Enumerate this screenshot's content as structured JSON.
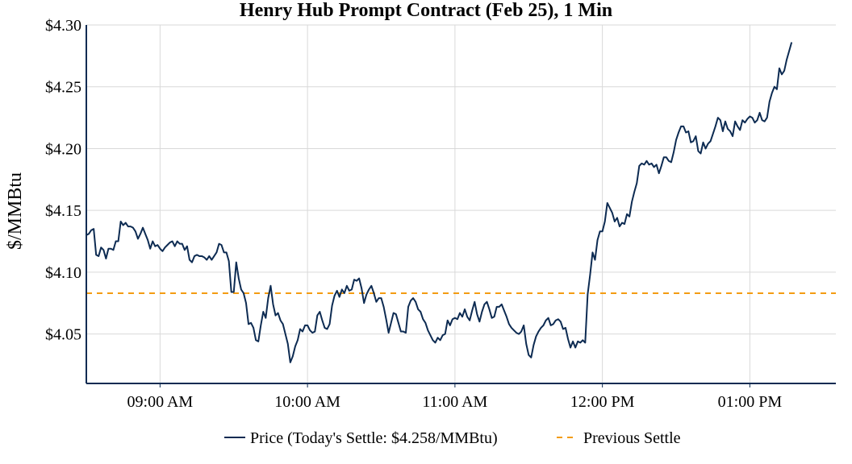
{
  "chart_data": {
    "type": "line",
    "title": "Henry Hub Prompt Contract (Feb 25), 1 Min",
    "xlabel": "",
    "ylabel": "$/MMBtu",
    "ylim": [
      4.01,
      4.3
    ],
    "xlim": [
      "08:30",
      "13:35"
    ],
    "x_ticks": [
      "09:00 AM",
      "10:00 AM",
      "11:00 AM",
      "12:00 PM",
      "01:00 PM"
    ],
    "x_tick_times": [
      "09:00",
      "10:00",
      "11:00",
      "12:00",
      "13:00"
    ],
    "y_ticks": [
      "$4.05",
      "$4.10",
      "$4.15",
      "$4.20",
      "$4.25",
      "$4.30"
    ],
    "y_tick_values": [
      4.05,
      4.1,
      4.15,
      4.2,
      4.25,
      4.3
    ],
    "grid": true,
    "legend_position": "bottom-center",
    "colors": {
      "price": "#0d2b52",
      "previous_settle": "#f39c12",
      "grid": "#d9d9d9",
      "axis": "#0d2b52"
    },
    "series": [
      {
        "name": "Price (Today's Settle: $4.258/MMBtu)",
        "style": "solid",
        "points": [
          [
            "08:30",
            4.13
          ],
          [
            "08:31",
            4.131
          ],
          [
            "08:32",
            4.134
          ],
          [
            "08:33",
            4.135
          ],
          [
            "08:34",
            4.114
          ],
          [
            "08:35",
            4.113
          ],
          [
            "08:36",
            4.12
          ],
          [
            "08:37",
            4.118
          ],
          [
            "08:38",
            4.111
          ],
          [
            "08:39",
            4.119
          ],
          [
            "08:40",
            4.119
          ],
          [
            "08:41",
            4.118
          ],
          [
            "08:42",
            4.125
          ],
          [
            "08:43",
            4.125
          ],
          [
            "08:44",
            4.141
          ],
          [
            "08:45",
            4.138
          ],
          [
            "08:46",
            4.14
          ],
          [
            "08:47",
            4.137
          ],
          [
            "08:48",
            4.137
          ],
          [
            "08:49",
            4.136
          ],
          [
            "08:50",
            4.133
          ],
          [
            "08:51",
            4.127
          ],
          [
            "08:52",
            4.131
          ],
          [
            "08:53",
            4.136
          ],
          [
            "08:54",
            4.131
          ],
          [
            "08:55",
            4.126
          ],
          [
            "08:56",
            4.119
          ],
          [
            "08:57",
            4.125
          ],
          [
            "08:58",
            4.121
          ],
          [
            "08:59",
            4.122
          ],
          [
            "09:00",
            4.119
          ],
          [
            "09:01",
            4.117
          ],
          [
            "09:02",
            4.12
          ],
          [
            "09:03",
            4.122
          ],
          [
            "09:04",
            4.124
          ],
          [
            "09:05",
            4.125
          ],
          [
            "09:06",
            4.121
          ],
          [
            "09:07",
            4.125
          ],
          [
            "09:08",
            4.123
          ],
          [
            "09:09",
            4.123
          ],
          [
            "09:10",
            4.118
          ],
          [
            "09:11",
            4.121
          ],
          [
            "09:12",
            4.11
          ],
          [
            "09:13",
            4.108
          ],
          [
            "09:14",
            4.113
          ],
          [
            "09:15",
            4.114
          ],
          [
            "09:16",
            4.113
          ],
          [
            "09:17",
            4.113
          ],
          [
            "09:18",
            4.112
          ],
          [
            "09:19",
            4.11
          ],
          [
            "09:20",
            4.113
          ],
          [
            "09:21",
            4.11
          ],
          [
            "09:22",
            4.113
          ],
          [
            "09:23",
            4.116
          ],
          [
            "09:24",
            4.123
          ],
          [
            "09:25",
            4.122
          ],
          [
            "09:26",
            4.116
          ],
          [
            "09:27",
            4.116
          ],
          [
            "09:28",
            4.109
          ],
          [
            "09:29",
            4.084
          ],
          [
            "09:30",
            4.084
          ],
          [
            "09:31",
            4.108
          ],
          [
            "09:32",
            4.095
          ],
          [
            "09:33",
            4.086
          ],
          [
            "09:34",
            4.083
          ],
          [
            "09:35",
            4.075
          ],
          [
            "09:36",
            4.058
          ],
          [
            "09:37",
            4.059
          ],
          [
            "09:38",
            4.055
          ],
          [
            "09:39",
            4.045
          ],
          [
            "09:40",
            4.044
          ],
          [
            "09:41",
            4.057
          ],
          [
            "09:42",
            4.068
          ],
          [
            "09:43",
            4.063
          ],
          [
            "09:44",
            4.079
          ],
          [
            "09:45",
            4.089
          ],
          [
            "09:46",
            4.074
          ],
          [
            "09:47",
            4.065
          ],
          [
            "09:48",
            4.067
          ],
          [
            "09:49",
            4.061
          ],
          [
            "09:50",
            4.058
          ],
          [
            "09:51",
            4.05
          ],
          [
            "09:52",
            4.042
          ],
          [
            "09:53",
            4.027
          ],
          [
            "09:54",
            4.032
          ],
          [
            "09:55",
            4.04
          ],
          [
            "09:56",
            4.045
          ],
          [
            "09:57",
            4.054
          ],
          [
            "09:58",
            4.052
          ],
          [
            "09:59",
            4.057
          ],
          [
            "10:00",
            4.057
          ],
          [
            "10:01",
            4.053
          ],
          [
            "10:02",
            4.051
          ],
          [
            "10:03",
            4.052
          ],
          [
            "10:04",
            4.065
          ],
          [
            "10:05",
            4.068
          ],
          [
            "10:06",
            4.061
          ],
          [
            "10:07",
            4.055
          ],
          [
            "10:08",
            4.054
          ],
          [
            "10:09",
            4.058
          ],
          [
            "10:10",
            4.073
          ],
          [
            "10:11",
            4.081
          ],
          [
            "10:12",
            4.085
          ],
          [
            "10:13",
            4.08
          ],
          [
            "10:14",
            4.086
          ],
          [
            "10:15",
            4.083
          ],
          [
            "10:16",
            4.089
          ],
          [
            "10:17",
            4.085
          ],
          [
            "10:18",
            4.086
          ],
          [
            "10:19",
            4.094
          ],
          [
            "10:20",
            4.093
          ],
          [
            "10:21",
            4.095
          ],
          [
            "10:22",
            4.087
          ],
          [
            "10:23",
            4.075
          ],
          [
            "10:24",
            4.082
          ],
          [
            "10:25",
            4.086
          ],
          [
            "10:26",
            4.089
          ],
          [
            "10:27",
            4.083
          ],
          [
            "10:28",
            4.076
          ],
          [
            "10:29",
            4.079
          ],
          [
            "10:30",
            4.079
          ],
          [
            "10:31",
            4.072
          ],
          [
            "10:32",
            4.062
          ],
          [
            "10:33",
            4.051
          ],
          [
            "10:34",
            4.059
          ],
          [
            "10:35",
            4.067
          ],
          [
            "10:36",
            4.066
          ],
          [
            "10:37",
            4.059
          ],
          [
            "10:38",
            4.052
          ],
          [
            "10:39",
            4.052
          ],
          [
            "10:40",
            4.051
          ],
          [
            "10:41",
            4.072
          ],
          [
            "10:42",
            4.077
          ],
          [
            "10:43",
            4.079
          ],
          [
            "10:44",
            4.076
          ],
          [
            "10:45",
            4.07
          ],
          [
            "10:46",
            4.068
          ],
          [
            "10:47",
            4.062
          ],
          [
            "10:48",
            4.059
          ],
          [
            "10:49",
            4.053
          ],
          [
            "10:50",
            4.049
          ],
          [
            "10:51",
            4.045
          ],
          [
            "10:52",
            4.043
          ],
          [
            "10:53",
            4.047
          ],
          [
            "10:54",
            4.045
          ],
          [
            "10:55",
            4.049
          ],
          [
            "10:56",
            4.05
          ],
          [
            "10:57",
            4.061
          ],
          [
            "10:58",
            4.057
          ],
          [
            "10:59",
            4.062
          ],
          [
            "11:00",
            4.063
          ],
          [
            "11:01",
            4.062
          ],
          [
            "11:02",
            4.067
          ],
          [
            "11:03",
            4.064
          ],
          [
            "11:04",
            4.07
          ],
          [
            "11:05",
            4.064
          ],
          [
            "11:06",
            4.061
          ],
          [
            "11:07",
            4.069
          ],
          [
            "11:08",
            4.076
          ],
          [
            "11:09",
            4.066
          ],
          [
            "11:10",
            4.06
          ],
          [
            "11:11",
            4.068
          ],
          [
            "11:12",
            4.074
          ],
          [
            "11:13",
            4.076
          ],
          [
            "11:14",
            4.07
          ],
          [
            "11:15",
            4.063
          ],
          [
            "11:16",
            4.064
          ],
          [
            "11:17",
            4.072
          ],
          [
            "11:18",
            4.072
          ],
          [
            "11:19",
            4.074
          ],
          [
            "11:20",
            4.069
          ],
          [
            "11:21",
            4.064
          ],
          [
            "11:22",
            4.058
          ],
          [
            "11:23",
            4.055
          ],
          [
            "11:24",
            4.053
          ],
          [
            "11:25",
            4.051
          ],
          [
            "11:26",
            4.05
          ],
          [
            "11:27",
            4.052
          ],
          [
            "11:28",
            4.057
          ],
          [
            "11:29",
            4.042
          ],
          [
            "11:30",
            4.033
          ],
          [
            "11:31",
            4.031
          ],
          [
            "11:32",
            4.041
          ],
          [
            "11:33",
            4.048
          ],
          [
            "11:34",
            4.052
          ],
          [
            "11:35",
            4.055
          ],
          [
            "11:36",
            4.057
          ],
          [
            "11:37",
            4.061
          ],
          [
            "11:38",
            4.063
          ],
          [
            "11:39",
            4.057
          ],
          [
            "11:40",
            4.058
          ],
          [
            "11:41",
            4.061
          ],
          [
            "11:42",
            4.062
          ],
          [
            "11:43",
            4.06
          ],
          [
            "11:44",
            4.054
          ],
          [
            "11:45",
            4.055
          ],
          [
            "11:46",
            4.046
          ],
          [
            "11:47",
            4.039
          ],
          [
            "11:48",
            4.044
          ],
          [
            "11:49",
            4.039
          ],
          [
            "11:50",
            4.044
          ],
          [
            "11:51",
            4.043
          ],
          [
            "11:52",
            4.045
          ],
          [
            "11:53",
            4.043
          ],
          [
            "11:54",
            4.082
          ],
          [
            "11:55",
            4.098
          ],
          [
            "11:56",
            4.116
          ],
          [
            "11:57",
            4.11
          ],
          [
            "11:58",
            4.126
          ],
          [
            "11:59",
            4.133
          ],
          [
            "12:00",
            4.133
          ],
          [
            "12:01",
            4.141
          ],
          [
            "12:02",
            4.156
          ],
          [
            "12:03",
            4.152
          ],
          [
            "12:04",
            4.148
          ],
          [
            "12:05",
            4.141
          ],
          [
            "12:06",
            4.144
          ],
          [
            "12:07",
            4.137
          ],
          [
            "12:08",
            4.14
          ],
          [
            "12:09",
            4.139
          ],
          [
            "12:10",
            4.147
          ],
          [
            "12:11",
            4.145
          ],
          [
            "12:12",
            4.157
          ],
          [
            "12:13",
            4.165
          ],
          [
            "12:14",
            4.172
          ],
          [
            "12:15",
            4.186
          ],
          [
            "12:16",
            4.188
          ],
          [
            "12:17",
            4.187
          ],
          [
            "12:18",
            4.19
          ],
          [
            "12:19",
            4.187
          ],
          [
            "12:20",
            4.188
          ],
          [
            "12:21",
            4.185
          ],
          [
            "12:22",
            4.187
          ],
          [
            "12:23",
            4.18
          ],
          [
            "12:24",
            4.186
          ],
          [
            "12:25",
            4.193
          ],
          [
            "12:26",
            4.193
          ],
          [
            "12:27",
            4.19
          ],
          [
            "12:28",
            4.189
          ],
          [
            "12:29",
            4.197
          ],
          [
            "12:30",
            4.207
          ],
          [
            "12:31",
            4.213
          ],
          [
            "12:32",
            4.218
          ],
          [
            "12:33",
            4.218
          ],
          [
            "12:34",
            4.213
          ],
          [
            "12:35",
            4.214
          ],
          [
            "12:36",
            4.205
          ],
          [
            "12:37",
            4.206
          ],
          [
            "12:38",
            4.21
          ],
          [
            "12:39",
            4.198
          ],
          [
            "12:40",
            4.196
          ],
          [
            "12:41",
            4.205
          ],
          [
            "12:42",
            4.2
          ],
          [
            "12:43",
            4.204
          ],
          [
            "12:44",
            4.206
          ],
          [
            "12:45",
            4.212
          ],
          [
            "12:46",
            4.218
          ],
          [
            "12:47",
            4.225
          ],
          [
            "12:48",
            4.223
          ],
          [
            "12:49",
            4.214
          ],
          [
            "12:50",
            4.222
          ],
          [
            "12:51",
            4.216
          ],
          [
            "12:52",
            4.214
          ],
          [
            "12:53",
            4.21
          ],
          [
            "12:54",
            4.222
          ],
          [
            "12:55",
            4.218
          ],
          [
            "12:56",
            4.215
          ],
          [
            "12:57",
            4.223
          ],
          [
            "12:58",
            4.221
          ],
          [
            "12:59",
            4.224
          ],
          [
            "13:00",
            4.226
          ],
          [
            "13:01",
            4.225
          ],
          [
            "13:02",
            4.221
          ],
          [
            "13:03",
            4.223
          ],
          [
            "13:04",
            4.229
          ],
          [
            "13:05",
            4.223
          ],
          [
            "13:06",
            4.222
          ],
          [
            "13:07",
            4.225
          ],
          [
            "13:08",
            4.238
          ],
          [
            "13:09",
            4.245
          ],
          [
            "13:10",
            4.25
          ],
          [
            "13:11",
            4.248
          ],
          [
            "13:12",
            4.265
          ],
          [
            "13:13",
            4.26
          ],
          [
            "13:14",
            4.263
          ],
          [
            "13:15",
            4.272
          ],
          [
            "13:16",
            4.279
          ],
          [
            "13:17",
            4.286
          ]
        ]
      },
      {
        "name": "Previous Settle",
        "style": "dashed",
        "value": 4.083
      }
    ]
  }
}
